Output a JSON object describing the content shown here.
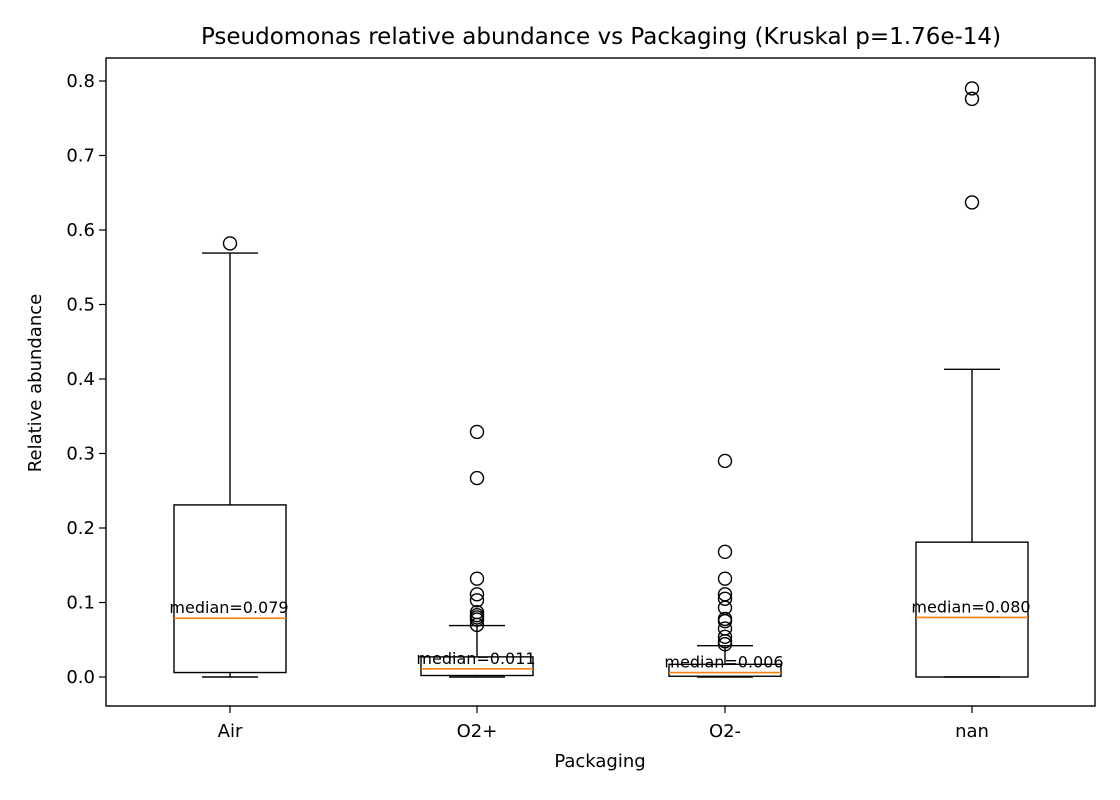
{
  "chart_data": {
    "type": "box",
    "title": "Pseudomonas relative abundance vs Packaging  (Kruskal p=1.76e-14)",
    "xlabel": "Packaging",
    "ylabel": "Relative abundance",
    "ylim": [
      -0.04,
      0.83
    ],
    "yticks": [
      "0.0",
      "0.1",
      "0.2",
      "0.3",
      "0.4",
      "0.5",
      "0.6",
      "0.7",
      "0.8"
    ],
    "categories": [
      "Air",
      "O2+",
      "O2-",
      "nan"
    ],
    "boxes": [
      {
        "name": "Air",
        "whisker_low": 0.0,
        "q1": 0.006,
        "median": 0.079,
        "q3": 0.231,
        "whisker_high": 0.569,
        "outliers": [
          0.582
        ],
        "median_label": "median=0.079"
      },
      {
        "name": "O2+",
        "whisker_low": 0.0,
        "q1": 0.002,
        "median": 0.011,
        "q3": 0.027,
        "whisker_high": 0.069,
        "outliers": [
          0.07,
          0.077,
          0.08,
          0.083,
          0.087,
          0.103,
          0.111,
          0.132,
          0.267,
          0.329
        ],
        "median_label": "median=0.011"
      },
      {
        "name": "O2-",
        "whisker_low": 0.0,
        "q1": 0.001,
        "median": 0.006,
        "q3": 0.017,
        "whisker_high": 0.042,
        "outliers": [
          0.044,
          0.048,
          0.054,
          0.065,
          0.075,
          0.078,
          0.093,
          0.105,
          0.111,
          0.132,
          0.168,
          0.29
        ],
        "median_label": "median=0.006"
      },
      {
        "name": "nan",
        "whisker_low": 0.0,
        "q1": 0.0,
        "median": 0.08,
        "q3": 0.181,
        "whisker_high": 0.413,
        "outliers": [
          0.637,
          0.776,
          0.79
        ],
        "median_label": "median=0.080"
      }
    ],
    "colors": {
      "box": "#000000",
      "median": "#ff7f0e"
    }
  }
}
